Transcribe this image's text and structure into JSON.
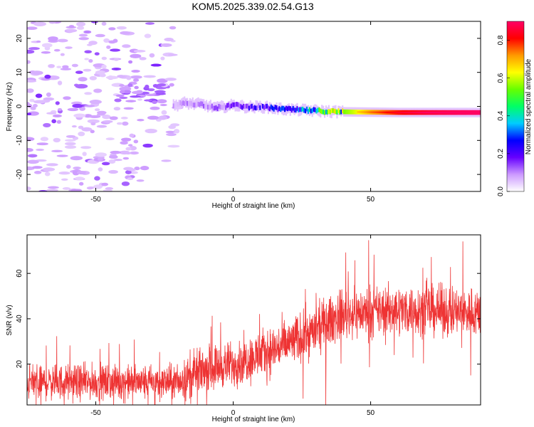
{
  "chart_data": [
    {
      "type": "heatmap",
      "title": "KOM5.2025.339.02.54.G13",
      "xlabel": "Height of straight line (km)",
      "ylabel": "Frequency (Hz)",
      "xlim": [
        -75,
        90
      ],
      "ylim": [
        -25,
        25
      ],
      "x_ticks": [
        -50,
        0,
        50
      ],
      "y_ticks": [
        -20,
        -10,
        0,
        10,
        20
      ],
      "trace": {
        "description": "signal band",
        "points": [
          {
            "x": -22,
            "y": 0.2,
            "amp": 0.08
          },
          {
            "x": -18,
            "y": 1.0,
            "amp": 0.1
          },
          {
            "x": -12,
            "y": 0.6,
            "amp": 0.1
          },
          {
            "x": -6,
            "y": -0.4,
            "amp": 0.12
          },
          {
            "x": 0,
            "y": 0.4,
            "amp": 0.15
          },
          {
            "x": 5,
            "y": -0.2,
            "amp": 0.18
          },
          {
            "x": 10,
            "y": -0.1,
            "amp": 0.2
          },
          {
            "x": 15,
            "y": -0.6,
            "amp": 0.25
          },
          {
            "x": 20,
            "y": -0.9,
            "amp": 0.3
          },
          {
            "x": 25,
            "y": -1.1,
            "amp": 0.35
          },
          {
            "x": 30,
            "y": -1.3,
            "amp": 0.4
          },
          {
            "x": 35,
            "y": -1.5,
            "amp": 0.5
          },
          {
            "x": 40,
            "y": -1.6,
            "amp": 0.55
          },
          {
            "x": 50,
            "y": -1.7,
            "amp": 0.7
          },
          {
            "x": 60,
            "y": -1.8,
            "amp": 0.8
          },
          {
            "x": 70,
            "y": -1.8,
            "amp": 0.85
          },
          {
            "x": 80,
            "y": -1.8,
            "amp": 0.88
          },
          {
            "x": 90,
            "y": -1.8,
            "amp": 0.9
          }
        ]
      },
      "noise_region": {
        "x_min": -75,
        "x_max": -20,
        "y_min": -25,
        "y_max": 25
      }
    },
    {
      "type": "colorbar",
      "label": "Normalized spectral amplitude",
      "range": [
        0.0,
        0.9
      ],
      "ticks": [
        0.0,
        0.2,
        0.4,
        0.6,
        0.8
      ],
      "tick_labels": [
        "0.0",
        "0.2",
        "0.4",
        "0.6",
        "0.8"
      ],
      "colors": [
        "#ffffff",
        "#cc99ff",
        "#6600ff",
        "#0000ff",
        "#00ccff",
        "#00ff66",
        "#66ff00",
        "#ffff00",
        "#ff9900",
        "#ff0000",
        "#ff0066"
      ]
    },
    {
      "type": "line",
      "xlabel": "Height of straight line (km)",
      "ylabel": "SNR (v/v)",
      "xlim": [
        -75,
        90
      ],
      "ylim": [
        2,
        77
      ],
      "x_ticks": [
        -50,
        0,
        50
      ],
      "y_ticks": [
        20,
        40,
        60
      ],
      "color": "#ee3333",
      "series": [
        {
          "name": "SNR",
          "trend_x": [
            -75,
            -60,
            -40,
            -25,
            -20,
            -15,
            -10,
            0,
            10,
            20,
            30,
            35,
            40,
            50,
            60,
            70,
            80,
            90
          ],
          "trend_mean": [
            12,
            12,
            12,
            12,
            12,
            15,
            18,
            20,
            24,
            29,
            35,
            39,
            42,
            43,
            44,
            44,
            43,
            43
          ],
          "trend_spread": [
            7,
            7,
            7,
            7,
            7,
            9,
            9,
            9,
            10,
            10,
            10,
            10,
            10,
            10,
            10,
            10,
            10,
            10
          ]
        }
      ]
    }
  ]
}
